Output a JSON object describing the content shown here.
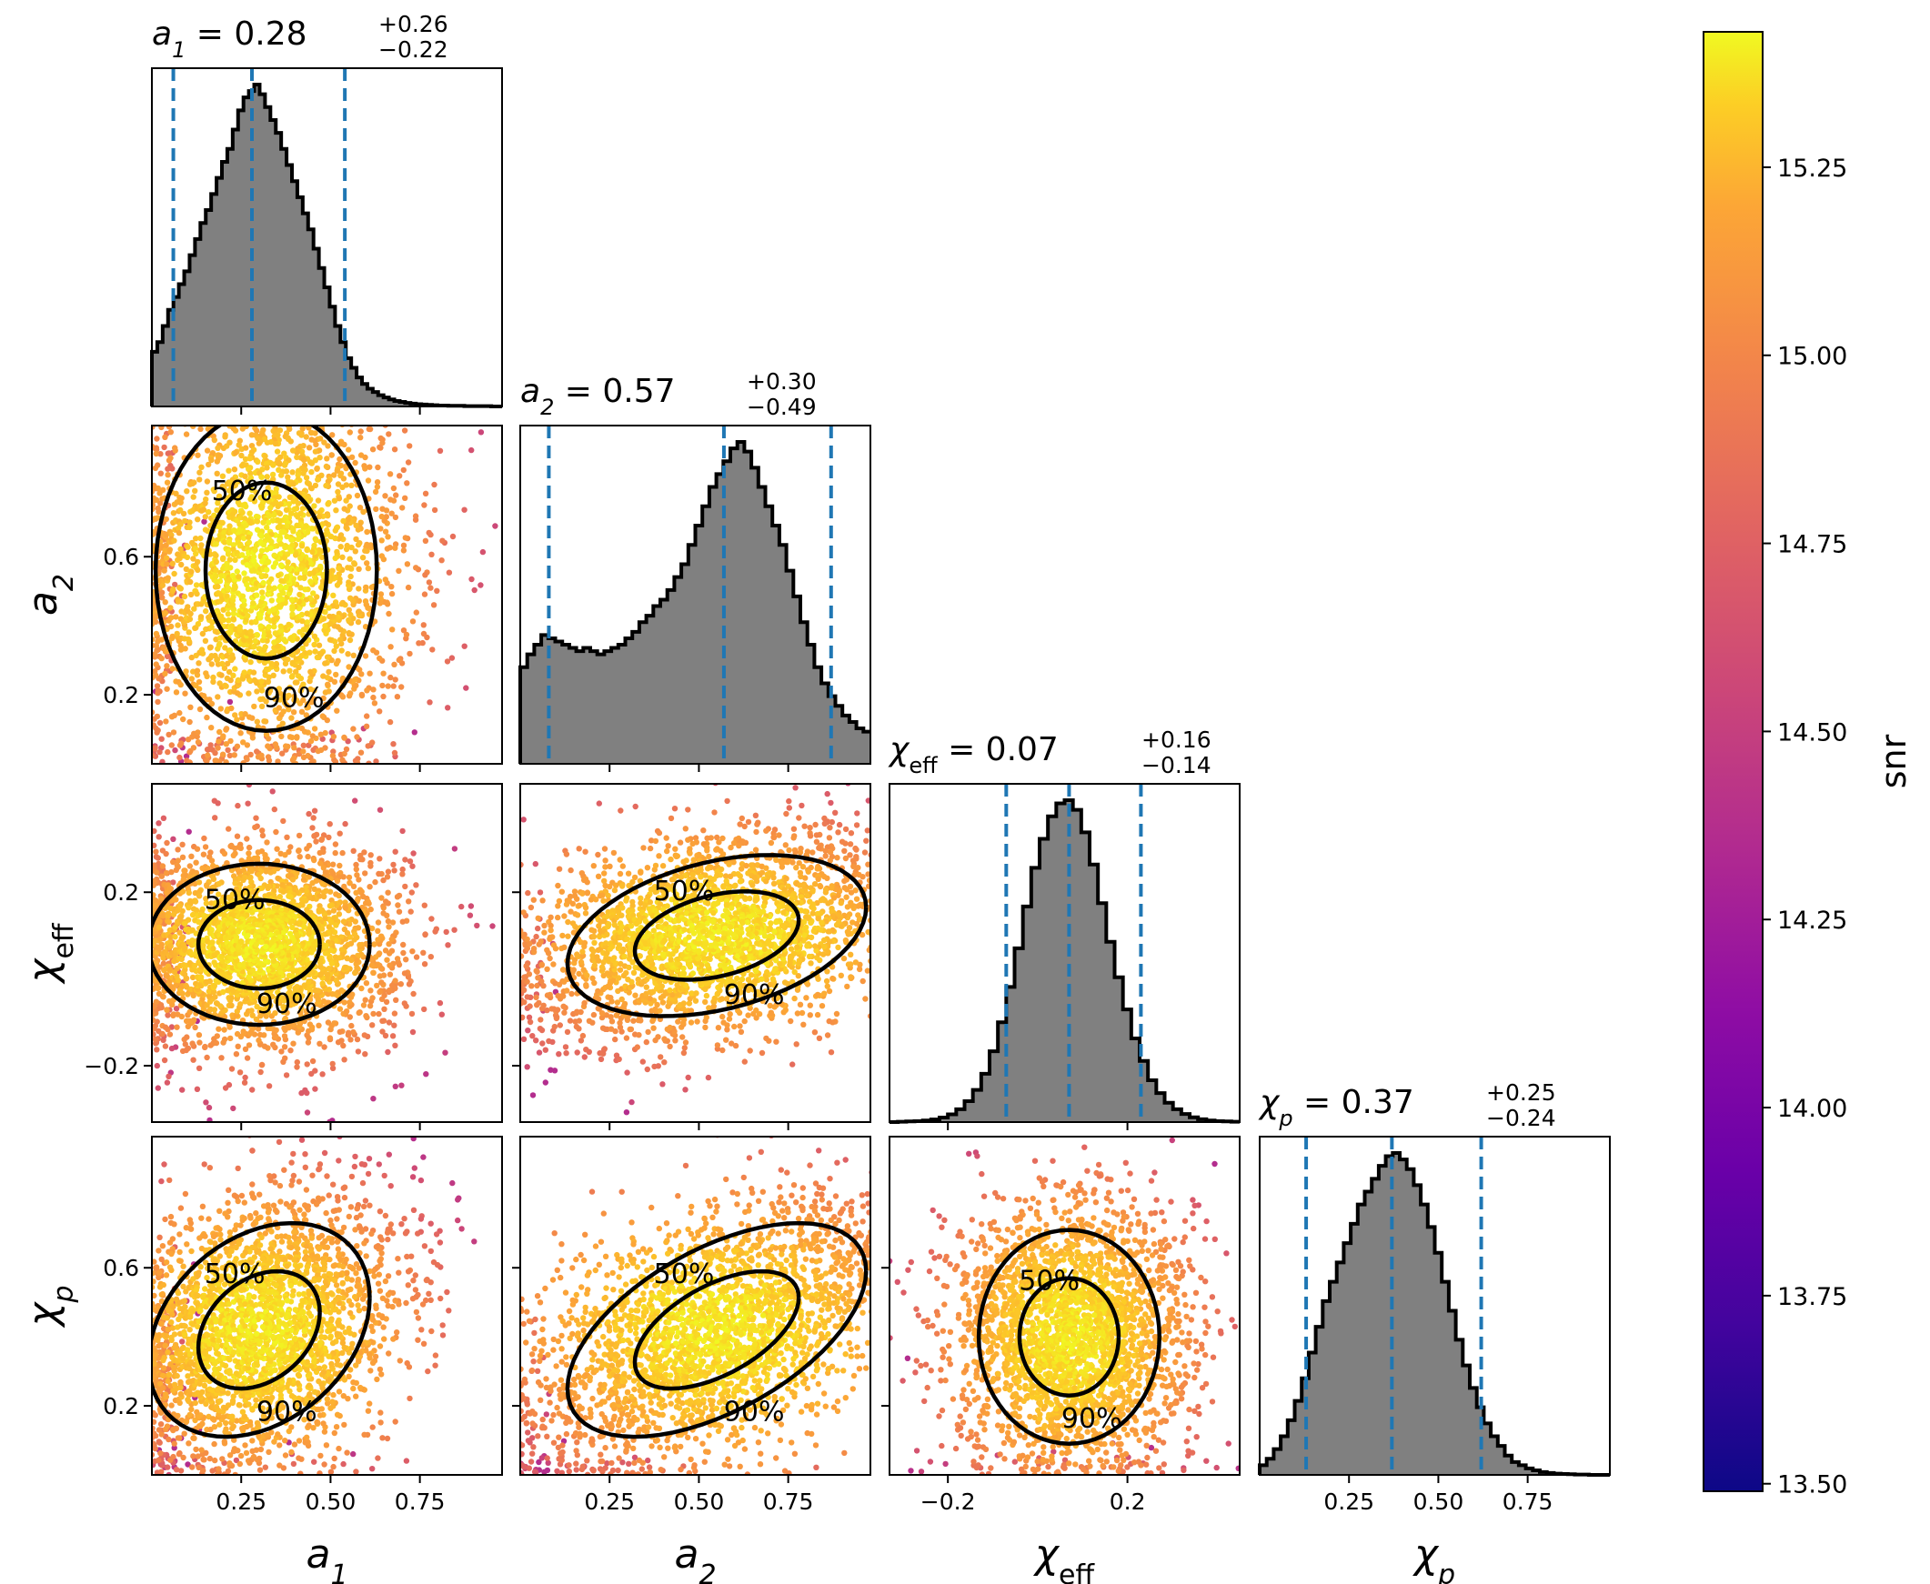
{
  "chart_data": {
    "type": "scatter",
    "kind": "corner-plot",
    "parameters": [
      {
        "key": "a1",
        "symbol": "a",
        "sub": "1",
        "range": [
          0.0,
          0.98
        ],
        "ticks": [
          0.25,
          0.5,
          0.75
        ],
        "tick_labels": [
          "0.25",
          "0.50",
          "0.75"
        ]
      },
      {
        "key": "a2",
        "symbol": "a",
        "sub": "2",
        "range": [
          0.0,
          0.98
        ],
        "ticks": [
          0.25,
          0.5,
          0.75
        ],
        "tick_labels": [
          "0.25",
          "0.50",
          "0.75"
        ],
        "y_ticks": [
          0.2,
          0.6
        ],
        "y_tick_labels": [
          "0.2",
          "0.6"
        ]
      },
      {
        "key": "chi_eff",
        "symbol": "χ",
        "sub": "eff",
        "range": [
          -0.33,
          0.45
        ],
        "ticks": [
          -0.2,
          0.2
        ],
        "tick_labels": [
          "−0.2",
          "0.2"
        ],
        "y_ticks": [
          -0.2,
          0.2
        ],
        "y_tick_labels": [
          "−0.2",
          "0.2"
        ]
      },
      {
        "key": "chi_p",
        "symbol": "χ",
        "sub": "p",
        "range": [
          0.0,
          0.98
        ],
        "ticks": [
          0.25,
          0.5,
          0.75
        ],
        "tick_labels": [
          "0.25",
          "0.50",
          "0.75"
        ],
        "y_ticks": [
          0.2,
          0.6
        ],
        "y_tick_labels": [
          "0.2",
          "0.6"
        ]
      }
    ],
    "titles": [
      {
        "symbol": "a",
        "sub": "1",
        "eq": " = 0.28",
        "sup": "+0.26",
        "low": "−0.22"
      },
      {
        "symbol": "a",
        "sub": "2",
        "eq": " = 0.57",
        "sup": "+0.30",
        "low": "−0.49"
      },
      {
        "symbol": "χ",
        "sub": "eff",
        "eq": " = 0.07",
        "sup": "+0.16",
        "low": "−0.14"
      },
      {
        "symbol": "χ",
        "sub": "p",
        "eq": " = 0.37",
        "sup": "+0.25",
        "low": "−0.24"
      }
    ],
    "quantiles": [
      [
        0.06,
        0.28,
        0.54
      ],
      [
        0.08,
        0.57,
        0.87
      ],
      [
        -0.07,
        0.07,
        0.23
      ],
      [
        0.13,
        0.37,
        0.62
      ]
    ],
    "histograms": [
      {
        "bin_edges_range": [
          0.0,
          0.98
        ],
        "counts": [
          0.17,
          0.2,
          0.25,
          0.3,
          0.34,
          0.38,
          0.42,
          0.47,
          0.52,
          0.57,
          0.61,
          0.66,
          0.71,
          0.76,
          0.8,
          0.86,
          0.92,
          0.96,
          0.98,
          1.0,
          0.97,
          0.93,
          0.89,
          0.85,
          0.8,
          0.75,
          0.7,
          0.65,
          0.6,
          0.55,
          0.49,
          0.43,
          0.37,
          0.31,
          0.25,
          0.2,
          0.15,
          0.12,
          0.09,
          0.07,
          0.055,
          0.045,
          0.035,
          0.028,
          0.022,
          0.017,
          0.014,
          0.011,
          0.009,
          0.007,
          0.006,
          0.005,
          0.004,
          0.003,
          0.003,
          0.002,
          0.002,
          0.002,
          0.001,
          0.001,
          0.001,
          0.001,
          0.001,
          0.0,
          0.0
        ]
      },
      {
        "bin_edges_range": [
          0.0,
          0.98
        ],
        "counts": [
          0.3,
          0.34,
          0.37,
          0.4,
          0.39,
          0.38,
          0.37,
          0.36,
          0.35,
          0.36,
          0.35,
          0.34,
          0.35,
          0.36,
          0.37,
          0.39,
          0.41,
          0.44,
          0.46,
          0.49,
          0.51,
          0.54,
          0.58,
          0.62,
          0.68,
          0.74,
          0.8,
          0.86,
          0.9,
          0.94,
          0.98,
          1.0,
          0.97,
          0.92,
          0.86,
          0.8,
          0.74,
          0.68,
          0.6,
          0.52,
          0.44,
          0.37,
          0.3,
          0.25,
          0.21,
          0.18,
          0.15,
          0.13,
          0.11,
          0.1
        ]
      },
      {
        "bin_edges_range": [
          -0.33,
          0.45
        ],
        "counts": [
          0.0,
          0.001,
          0.002,
          0.003,
          0.005,
          0.008,
          0.014,
          0.024,
          0.04,
          0.065,
          0.1,
          0.15,
          0.22,
          0.31,
          0.42,
          0.54,
          0.67,
          0.79,
          0.88,
          0.95,
          0.99,
          1.0,
          0.97,
          0.9,
          0.8,
          0.68,
          0.56,
          0.45,
          0.35,
          0.26,
          0.19,
          0.13,
          0.09,
          0.06,
          0.04,
          0.025,
          0.015,
          0.009,
          0.005,
          0.003,
          0.002,
          0.001
        ]
      },
      {
        "bin_edges_range": [
          0.0,
          0.98
        ],
        "counts": [
          0.03,
          0.05,
          0.08,
          0.12,
          0.17,
          0.23,
          0.3,
          0.38,
          0.46,
          0.54,
          0.6,
          0.66,
          0.72,
          0.78,
          0.84,
          0.88,
          0.92,
          0.96,
          0.99,
          1.0,
          0.98,
          0.95,
          0.9,
          0.84,
          0.77,
          0.69,
          0.6,
          0.51,
          0.42,
          0.34,
          0.27,
          0.21,
          0.16,
          0.12,
          0.09,
          0.06,
          0.04,
          0.03,
          0.02,
          0.014,
          0.009,
          0.006,
          0.004,
          0.003,
          0.002,
          0.001,
          0.001,
          0.0,
          0.0,
          0.0
        ]
      }
    ],
    "scatter_pairs": [
      {
        "x": "a1",
        "y": "a2",
        "center": [
          0.32,
          0.56
        ],
        "spread": [
          0.2,
          0.3
        ],
        "rho": 0.0
      },
      {
        "x": "a1",
        "y": "chi_eff",
        "center": [
          0.3,
          0.08
        ],
        "spread": [
          0.2,
          0.12
        ],
        "rho": 0.0
      },
      {
        "x": "a2",
        "y": "chi_eff",
        "center": [
          0.55,
          0.1
        ],
        "spread": [
          0.27,
          0.12
        ],
        "rho": 0.35
      },
      {
        "x": "a1",
        "y": "chi_p",
        "center": [
          0.3,
          0.42
        ],
        "spread": [
          0.2,
          0.2
        ],
        "rho": 0.3
      },
      {
        "x": "a2",
        "y": "chi_p",
        "center": [
          0.55,
          0.42
        ],
        "spread": [
          0.27,
          0.2
        ],
        "rho": 0.55
      },
      {
        "x": "chi_eff",
        "y": "chi_p",
        "center": [
          0.07,
          0.4
        ],
        "spread": [
          0.13,
          0.2
        ],
        "rho": 0.0
      }
    ],
    "contour_labels": [
      "50%",
      "90%"
    ],
    "colorbar": {
      "label": "snr",
      "range": [
        13.49,
        15.43
      ],
      "ticks": [
        13.5,
        13.75,
        14.0,
        14.25,
        14.5,
        14.75,
        15.0,
        15.25
      ],
      "tick_labels": [
        "13.50",
        "13.75",
        "14.00",
        "14.25",
        "14.50",
        "14.75",
        "15.00",
        "15.25"
      ],
      "colormap": "plasma"
    },
    "colors": {
      "hist_fill": "#808080",
      "hist_edge": "#000000",
      "quantile_line": "#1f77b4",
      "contour": "#000000"
    }
  }
}
